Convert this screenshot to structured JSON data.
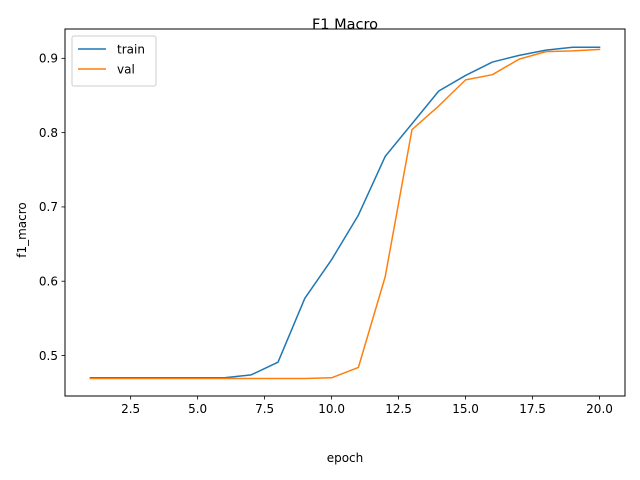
{
  "chart_data": {
    "type": "line",
    "title": "F1 Macro",
    "xlabel": "epoch",
    "ylabel": "f1_macro",
    "xlim": [
      0.05,
      20.95
    ],
    "ylim": [
      0.4455,
      0.9395
    ],
    "x_ticks": [
      2.5,
      5.0,
      7.5,
      10.0,
      12.5,
      15.0,
      17.5,
      20.0
    ],
    "x_tick_labels": [
      "2.5",
      "5.0",
      "7.5",
      "10.0",
      "12.5",
      "15.0",
      "17.5",
      "20.0"
    ],
    "y_ticks": [
      0.5,
      0.6,
      0.7,
      0.8,
      0.9
    ],
    "y_tick_labels": [
      "0.5",
      "0.6",
      "0.7",
      "0.8",
      "0.9"
    ],
    "grid": false,
    "legend_position": "top-left",
    "x": [
      1,
      2,
      3,
      4,
      5,
      6,
      7,
      8,
      9,
      10,
      11,
      12,
      13,
      14,
      15,
      16,
      17,
      18,
      19,
      20
    ],
    "series": [
      {
        "name": "train",
        "color": "#1f77b4",
        "values": [
          0.47,
          0.47,
          0.47,
          0.47,
          0.47,
          0.47,
          0.474,
          0.491,
          0.577,
          0.629,
          0.689,
          0.768,
          0.812,
          0.856,
          0.877,
          0.895,
          0.904,
          0.911,
          0.915,
          0.915
        ]
      },
      {
        "name": "val",
        "color": "#ff7f0e",
        "values": [
          0.469,
          0.469,
          0.469,
          0.469,
          0.469,
          0.469,
          0.469,
          0.469,
          0.469,
          0.47,
          0.484,
          0.606,
          0.804,
          0.836,
          0.871,
          0.878,
          0.899,
          0.909,
          0.91,
          0.912
        ]
      }
    ]
  }
}
